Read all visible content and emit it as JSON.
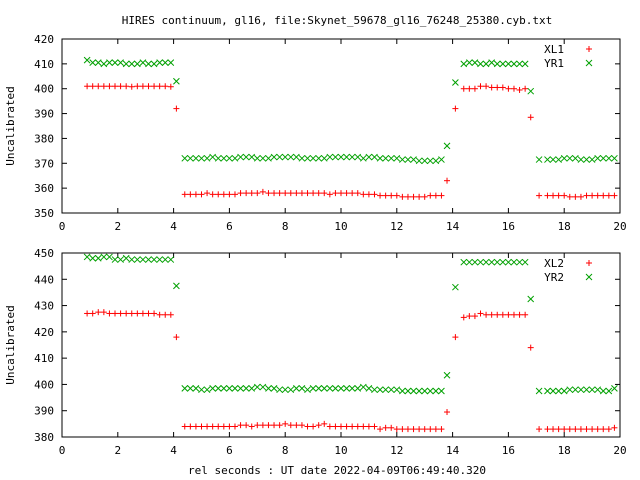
{
  "title": "HIRES continuum, gl16, file:Skynet_59678_gl16_76248_25380.cyb.txt",
  "xlabel": "rel seconds : UT date 2022-04-09T06:49:40.320",
  "colors": {
    "red": "#ff0000",
    "green": "#00a000"
  },
  "chart_data": [
    {
      "type": "scatter",
      "ylabel": "Uncalibrated",
      "xlim": [
        0,
        20
      ],
      "ylim": [
        350,
        420
      ],
      "xticks": [
        "0",
        "2",
        "4",
        "6",
        "8",
        "10",
        "12",
        "14",
        "16",
        "18",
        "20"
      ],
      "yticks": [
        "350",
        "360",
        "370",
        "380",
        "390",
        "400",
        "410",
        "420"
      ],
      "legend_position": "top-right",
      "series": [
        {
          "name": "XL1",
          "marker": "plus",
          "x": [
            0.9,
            1.1,
            1.3,
            1.5,
            1.7,
            1.9,
            2.1,
            2.3,
            2.5,
            2.7,
            2.9,
            3.1,
            3.3,
            3.5,
            3.7,
            3.9,
            4.1,
            4.4,
            4.6,
            4.8,
            5.0,
            5.2,
            5.4,
            5.6,
            5.8,
            6.0,
            6.2,
            6.4,
            6.6,
            6.8,
            7.0,
            7.2,
            7.4,
            7.6,
            7.8,
            8.0,
            8.2,
            8.4,
            8.6,
            8.8,
            9.0,
            9.2,
            9.4,
            9.6,
            9.8,
            10.0,
            10.2,
            10.4,
            10.6,
            10.8,
            11.0,
            11.2,
            11.4,
            11.6,
            11.8,
            12.0,
            12.2,
            12.4,
            12.6,
            12.8,
            13.0,
            13.2,
            13.4,
            13.6,
            13.8,
            14.1,
            14.4,
            14.6,
            14.8,
            15.0,
            15.2,
            15.4,
            15.6,
            15.8,
            16.0,
            16.2,
            16.4,
            16.6,
            16.8,
            17.1,
            17.4,
            17.6,
            17.8,
            18.0,
            18.2,
            18.4,
            18.6,
            18.8,
            19.0,
            19.2,
            19.4,
            19.6,
            19.8
          ],
          "y": [
            401.0,
            401.0,
            401.0,
            401.0,
            401.0,
            401.0,
            401.0,
            401.0,
            400.8,
            401.0,
            401.0,
            401.0,
            401.0,
            401.0,
            401.0,
            400.8,
            392.0,
            357.5,
            357.5,
            357.5,
            357.5,
            358.0,
            357.5,
            357.5,
            357.5,
            357.5,
            357.5,
            358.0,
            358.0,
            358.0,
            358.0,
            358.5,
            358.0,
            358.0,
            358.0,
            358.0,
            358.0,
            358.0,
            358.0,
            358.0,
            358.0,
            358.0,
            358.0,
            357.5,
            358.0,
            358.0,
            358.0,
            358.0,
            358.0,
            357.5,
            357.5,
            357.5,
            357.0,
            357.0,
            357.0,
            357.0,
            356.5,
            356.5,
            356.5,
            356.5,
            356.5,
            357.0,
            357.0,
            357.0,
            363.0,
            392.0,
            400.0,
            400.0,
            400.0,
            401.0,
            401.0,
            400.5,
            400.5,
            400.5,
            400.0,
            400.0,
            399.5,
            400.0,
            388.5,
            357.0,
            357.0,
            357.0,
            357.0,
            357.0,
            356.5,
            356.5,
            356.5,
            357.0,
            357.0,
            357.0,
            357.0,
            357.0,
            357.0
          ]
        },
        {
          "name": "YR1",
          "marker": "x",
          "x": [
            0.9,
            1.1,
            1.3,
            1.5,
            1.7,
            1.9,
            2.1,
            2.3,
            2.5,
            2.7,
            2.9,
            3.1,
            3.3,
            3.5,
            3.7,
            3.9,
            4.1,
            4.4,
            4.6,
            4.8,
            5.0,
            5.2,
            5.4,
            5.6,
            5.8,
            6.0,
            6.2,
            6.4,
            6.6,
            6.8,
            7.0,
            7.2,
            7.4,
            7.6,
            7.8,
            8.0,
            8.2,
            8.4,
            8.6,
            8.8,
            9.0,
            9.2,
            9.4,
            9.6,
            9.8,
            10.0,
            10.2,
            10.4,
            10.6,
            10.8,
            11.0,
            11.2,
            11.4,
            11.6,
            11.8,
            12.0,
            12.2,
            12.4,
            12.6,
            12.8,
            13.0,
            13.2,
            13.4,
            13.6,
            13.8,
            14.1,
            14.4,
            14.6,
            14.8,
            15.0,
            15.2,
            15.4,
            15.6,
            15.8,
            16.0,
            16.2,
            16.4,
            16.6,
            16.8,
            17.1,
            17.4,
            17.6,
            17.8,
            18.0,
            18.2,
            18.4,
            18.6,
            18.8,
            19.0,
            19.2,
            19.4,
            19.6,
            19.8
          ],
          "y": [
            411.5,
            410.5,
            410.5,
            410.0,
            410.5,
            410.5,
            410.5,
            410.0,
            410.0,
            410.0,
            410.5,
            410.0,
            410.0,
            410.5,
            410.5,
            410.5,
            403.0,
            372.0,
            372.0,
            372.0,
            372.0,
            372.0,
            372.5,
            372.0,
            372.0,
            372.0,
            372.0,
            372.5,
            372.5,
            372.5,
            372.0,
            372.0,
            372.0,
            372.5,
            372.5,
            372.5,
            372.5,
            372.5,
            372.0,
            372.0,
            372.0,
            372.0,
            372.0,
            372.5,
            372.5,
            372.5,
            372.5,
            372.5,
            372.5,
            372.0,
            372.5,
            372.5,
            372.0,
            372.0,
            372.0,
            372.0,
            371.5,
            371.5,
            371.5,
            371.0,
            371.0,
            371.0,
            371.0,
            371.5,
            377.0,
            402.5,
            410.0,
            410.5,
            410.5,
            410.0,
            410.0,
            410.5,
            410.0,
            410.0,
            410.0,
            410.0,
            410.0,
            410.0,
            399.0,
            371.5,
            371.5,
            371.5,
            371.5,
            372.0,
            372.0,
            372.0,
            371.5,
            371.5,
            371.5,
            372.0,
            372.0,
            372.0,
            372.0
          ]
        }
      ]
    },
    {
      "type": "scatter",
      "ylabel": "Uncalibrated",
      "xlim": [
        0,
        20
      ],
      "ylim": [
        380,
        450
      ],
      "xticks": [
        "0",
        "2",
        "4",
        "6",
        "8",
        "10",
        "12",
        "14",
        "16",
        "18",
        "20"
      ],
      "yticks": [
        "380",
        "390",
        "400",
        "410",
        "420",
        "430",
        "440",
        "450"
      ],
      "legend_position": "top-right",
      "series": [
        {
          "name": "XL2",
          "marker": "plus",
          "x": [
            0.9,
            1.1,
            1.3,
            1.5,
            1.7,
            1.9,
            2.1,
            2.3,
            2.5,
            2.7,
            2.9,
            3.1,
            3.3,
            3.5,
            3.7,
            3.9,
            4.1,
            4.4,
            4.6,
            4.8,
            5.0,
            5.2,
            5.4,
            5.6,
            5.8,
            6.0,
            6.2,
            6.4,
            6.6,
            6.8,
            7.0,
            7.2,
            7.4,
            7.6,
            7.8,
            8.0,
            8.2,
            8.4,
            8.6,
            8.8,
            9.0,
            9.2,
            9.4,
            9.6,
            9.8,
            10.0,
            10.2,
            10.4,
            10.6,
            10.8,
            11.0,
            11.2,
            11.4,
            11.6,
            11.8,
            12.0,
            12.2,
            12.4,
            12.6,
            12.8,
            13.0,
            13.2,
            13.4,
            13.6,
            13.8,
            14.1,
            14.4,
            14.6,
            14.8,
            15.0,
            15.2,
            15.4,
            15.6,
            15.8,
            16.0,
            16.2,
            16.4,
            16.6,
            16.8,
            17.1,
            17.4,
            17.6,
            17.8,
            18.0,
            18.2,
            18.4,
            18.6,
            18.8,
            19.0,
            19.2,
            19.4,
            19.6,
            19.8
          ],
          "y": [
            427.0,
            427.0,
            427.5,
            427.5,
            427.0,
            427.0,
            427.0,
            427.0,
            427.0,
            427.0,
            427.0,
            427.0,
            427.0,
            426.5,
            426.5,
            426.5,
            418.0,
            384.0,
            384.0,
            384.0,
            384.0,
            384.0,
            384.0,
            384.0,
            384.0,
            384.0,
            384.0,
            384.5,
            384.5,
            384.0,
            384.5,
            384.5,
            384.5,
            384.5,
            384.5,
            385.0,
            384.5,
            384.5,
            384.5,
            384.0,
            384.0,
            384.5,
            385.0,
            384.0,
            384.0,
            384.0,
            384.0,
            384.0,
            384.0,
            384.0,
            384.0,
            384.0,
            383.0,
            383.5,
            383.5,
            383.0,
            383.0,
            383.0,
            383.0,
            383.0,
            383.0,
            383.0,
            383.0,
            383.0,
            389.5,
            418.0,
            425.5,
            426.0,
            426.0,
            427.0,
            426.5,
            426.5,
            426.5,
            426.5,
            426.5,
            426.5,
            426.5,
            426.5,
            414.0,
            383.0,
            383.0,
            383.0,
            383.0,
            383.0,
            383.0,
            383.0,
            383.0,
            383.0,
            383.0,
            383.0,
            383.0,
            383.0,
            383.5
          ]
        },
        {
          "name": "YR2",
          "marker": "x",
          "x": [
            0.9,
            1.1,
            1.3,
            1.5,
            1.7,
            1.9,
            2.1,
            2.3,
            2.5,
            2.7,
            2.9,
            3.1,
            3.3,
            3.5,
            3.7,
            3.9,
            4.1,
            4.4,
            4.6,
            4.8,
            5.0,
            5.2,
            5.4,
            5.6,
            5.8,
            6.0,
            6.2,
            6.4,
            6.6,
            6.8,
            7.0,
            7.2,
            7.4,
            7.6,
            7.8,
            8.0,
            8.2,
            8.4,
            8.6,
            8.8,
            9.0,
            9.2,
            9.4,
            9.6,
            9.8,
            10.0,
            10.2,
            10.4,
            10.6,
            10.8,
            11.0,
            11.2,
            11.4,
            11.6,
            11.8,
            12.0,
            12.2,
            12.4,
            12.6,
            12.8,
            13.0,
            13.2,
            13.4,
            13.6,
            13.8,
            14.1,
            14.4,
            14.6,
            14.8,
            15.0,
            15.2,
            15.4,
            15.6,
            15.8,
            16.0,
            16.2,
            16.4,
            16.6,
            16.8,
            17.1,
            17.4,
            17.6,
            17.8,
            18.0,
            18.2,
            18.4,
            18.6,
            18.8,
            19.0,
            19.2,
            19.4,
            19.6,
            19.8
          ],
          "y": [
            448.5,
            448.0,
            448.0,
            448.5,
            448.5,
            447.5,
            447.5,
            448.0,
            447.5,
            447.5,
            447.5,
            447.5,
            447.5,
            447.5,
            447.5,
            447.5,
            437.5,
            398.5,
            398.5,
            398.5,
            398.0,
            398.0,
            398.5,
            398.5,
            398.5,
            398.5,
            398.5,
            398.5,
            398.5,
            398.5,
            399.0,
            399.0,
            398.5,
            398.5,
            398.0,
            398.0,
            398.0,
            398.5,
            398.5,
            398.0,
            398.5,
            398.5,
            398.5,
            398.5,
            398.5,
            398.5,
            398.5,
            398.5,
            398.5,
            399.0,
            398.5,
            398.0,
            398.0,
            398.0,
            398.0,
            398.0,
            397.5,
            397.5,
            397.5,
            397.5,
            397.5,
            397.5,
            397.5,
            397.5,
            403.5,
            437.0,
            446.5,
            446.5,
            446.5,
            446.5,
            446.5,
            446.5,
            446.5,
            446.5,
            446.5,
            446.5,
            446.5,
            446.5,
            432.5,
            397.5,
            397.5,
            397.5,
            397.5,
            397.5,
            398.0,
            398.0,
            398.0,
            398.0,
            398.0,
            398.0,
            397.5,
            397.5,
            398.5
          ]
        }
      ]
    }
  ]
}
